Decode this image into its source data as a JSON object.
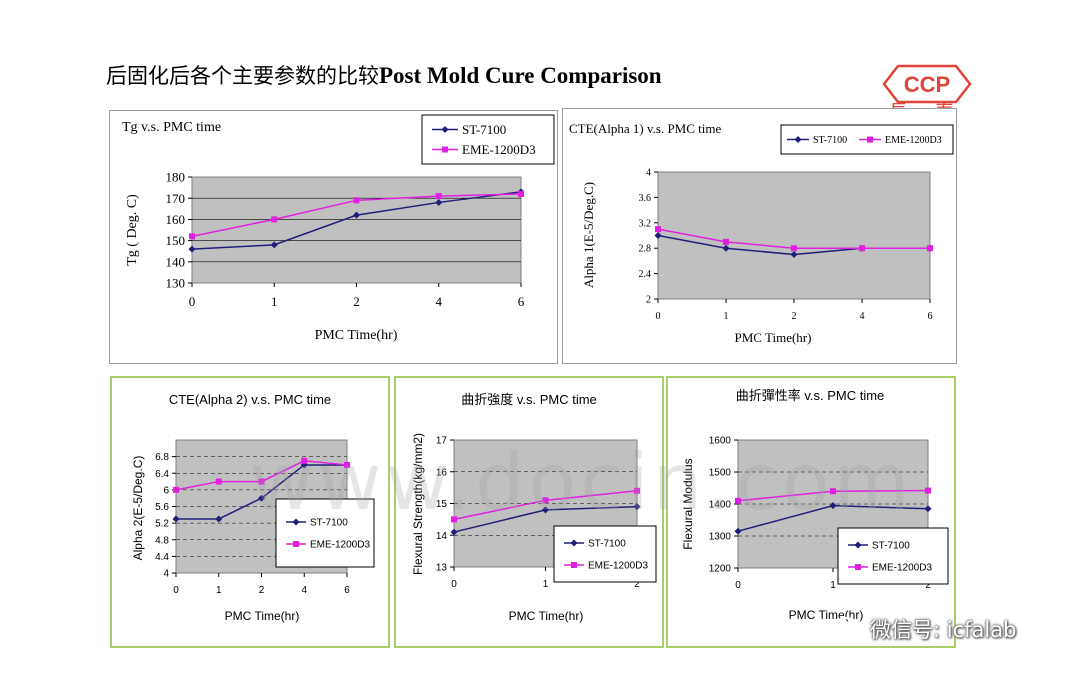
{
  "page": {
    "title_zh": "后固化后各个主要参数的比较",
    "title_en": "Post Mold Cure Comparison"
  },
  "logo": {
    "text": "CCP",
    "text_zh": "長 春",
    "color": "#e0443a"
  },
  "watermark": {
    "text": "www.docin.com"
  },
  "wechat": {
    "text": "微信号: icfalab"
  },
  "colors": {
    "st7100": "#1f1f7a",
    "eme": "#e020e0",
    "plot_bg": "#c0c0c0"
  },
  "chart_data": [
    {
      "type": "line",
      "title": "Tg v.s. PMC time",
      "xlabel": "PMC Time(hr)",
      "ylabel": "Tg ( Deg. C)",
      "categories": [
        "0",
        "1",
        "2",
        "4",
        "6"
      ],
      "ylim": [
        130,
        180
      ],
      "yticks": [
        "130",
        "140",
        "150",
        "160",
        "170",
        "180"
      ],
      "legend_position": "top-right",
      "series": [
        {
          "name": "ST-7100",
          "values": [
            146,
            148,
            162,
            168,
            173
          ]
        },
        {
          "name": "EME-1200D3",
          "values": [
            152,
            160,
            169,
            171,
            172
          ]
        }
      ]
    },
    {
      "type": "line",
      "title": "CTE(Alpha 1)  v.s. PMC time",
      "xlabel": "PMC Time(hr)",
      "ylabel": "Alpha 1(E-5/Deg.C)",
      "categories": [
        "0",
        "1",
        "2",
        "4",
        "6"
      ],
      "ylim": [
        2,
        4
      ],
      "yticks": [
        "2",
        "2.4",
        "2.8",
        "3.2",
        "3.6",
        "4"
      ],
      "legend_position": "top-right",
      "series": [
        {
          "name": "ST-7100",
          "values": [
            3.0,
            2.8,
            2.7,
            2.8,
            2.8
          ]
        },
        {
          "name": "EME-1200D3",
          "values": [
            3.1,
            2.9,
            2.8,
            2.8,
            2.8
          ]
        }
      ]
    },
    {
      "type": "line",
      "title": "CTE(Alpha 2) v.s. PMC time",
      "xlabel": "PMC Time(hr)",
      "ylabel": "Alpha 2(E-5/Deg.C)",
      "categories": [
        "0",
        "1",
        "2",
        "4",
        "6"
      ],
      "ylim": [
        4,
        7.2
      ],
      "yticks": [
        "4",
        "4.4",
        "4.8",
        "5.2",
        "5.6",
        "6",
        "6.4",
        "6.8"
      ],
      "legend_position": "bottom-right",
      "series": [
        {
          "name": "ST-7100",
          "values": [
            5.3,
            5.3,
            5.8,
            6.6,
            6.6
          ]
        },
        {
          "name": "EME-1200D3",
          "values": [
            6.0,
            6.2,
            6.2,
            6.7,
            6.6
          ]
        }
      ]
    },
    {
      "type": "line",
      "title": "曲折強度 v.s. PMC time",
      "xlabel": "PMC Time(hr)",
      "ylabel": "Flexural Strength(kg/mm2)",
      "categories": [
        "0",
        "1",
        "2"
      ],
      "ylim": [
        13,
        17
      ],
      "yticks": [
        "13",
        "14",
        "15",
        "16",
        "17"
      ],
      "legend_position": "bottom-right",
      "series": [
        {
          "name": "ST-7100",
          "values": [
            14.1,
            14.8,
            14.9
          ]
        },
        {
          "name": "EME-1200D3",
          "values": [
            14.5,
            15.1,
            15.4
          ]
        }
      ]
    },
    {
      "type": "line",
      "title": "曲折彈性率 v.s. PMC time",
      "xlabel": "PMC Time(hr)",
      "ylabel": "Flexural Modulus",
      "categories": [
        "0",
        "1",
        "2"
      ],
      "ylim": [
        1200,
        1600
      ],
      "yticks": [
        "1200",
        "1300",
        "1400",
        "1500",
        "1600"
      ],
      "legend_position": "bottom-right",
      "series": [
        {
          "name": "ST-7100",
          "values": [
            1315,
            1395,
            1385
          ]
        },
        {
          "name": "EME-1200D3",
          "values": [
            1410,
            1440,
            1442
          ]
        }
      ]
    }
  ]
}
